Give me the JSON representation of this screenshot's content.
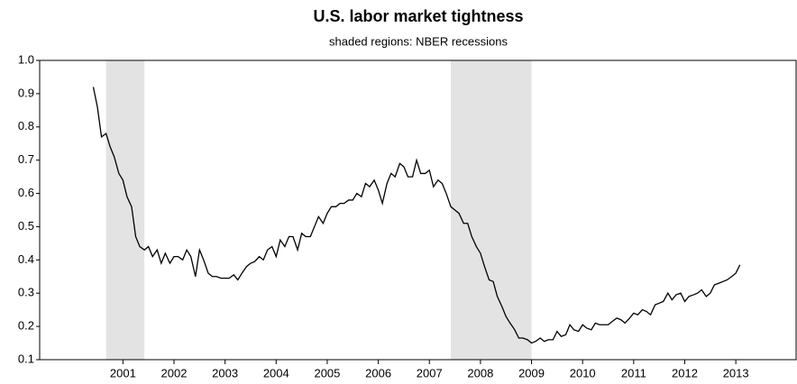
{
  "chart_data": {
    "type": "line",
    "title": "U.S. labor market tightness",
    "subtitle": "shaded regions: NBER recessions",
    "recessions": [
      [
        2001.17,
        2001.92
      ],
      [
        2007.92,
        2009.5
      ]
    ],
    "recession_color": "#e3e3e3",
    "xlim": [
      1999.87,
      2014.68
    ],
    "xticks": [
      {
        "value": 2001.5,
        "label": "2001"
      },
      {
        "value": 2002.5,
        "label": "2002"
      },
      {
        "value": 2003.5,
        "label": "2003"
      },
      {
        "value": 2004.5,
        "label": "2004"
      },
      {
        "value": 2005.5,
        "label": "2005"
      },
      {
        "value": 2006.5,
        "label": "2006"
      },
      {
        "value": 2007.5,
        "label": "2007"
      },
      {
        "value": 2008.5,
        "label": "2008"
      },
      {
        "value": 2009.5,
        "label": "2009"
      },
      {
        "value": 2010.5,
        "label": "2010"
      },
      {
        "value": 2011.5,
        "label": "2011"
      },
      {
        "value": 2012.5,
        "label": "2012"
      },
      {
        "value": 2013.5,
        "label": "2013"
      }
    ],
    "ylim": [
      0.1,
      1.0
    ],
    "yticks": [
      0.1,
      0.2,
      0.3,
      0.4,
      0.5,
      0.6,
      0.7,
      0.8,
      0.9,
      {
        "value": 1.0,
        "label": "1.0"
      }
    ],
    "grid": false,
    "x": [
      2000.92,
      2001.0,
      2001.08,
      2001.17,
      2001.25,
      2001.33,
      2001.42,
      2001.5,
      2001.58,
      2001.67,
      2001.75,
      2001.83,
      2001.92,
      2002.0,
      2002.08,
      2002.17,
      2002.25,
      2002.33,
      2002.42,
      2002.5,
      2002.58,
      2002.67,
      2002.75,
      2002.83,
      2002.92,
      2003.0,
      2003.08,
      2003.17,
      2003.25,
      2003.33,
      2003.42,
      2003.5,
      2003.58,
      2003.67,
      2003.75,
      2003.83,
      2003.92,
      2004.0,
      2004.08,
      2004.17,
      2004.25,
      2004.33,
      2004.42,
      2004.5,
      2004.58,
      2004.67,
      2004.75,
      2004.83,
      2004.92,
      2005.0,
      2005.08,
      2005.17,
      2005.25,
      2005.33,
      2005.42,
      2005.5,
      2005.58,
      2005.67,
      2005.75,
      2005.83,
      2005.92,
      2006.0,
      2006.08,
      2006.17,
      2006.25,
      2006.33,
      2006.42,
      2006.5,
      2006.58,
      2006.67,
      2006.75,
      2006.83,
      2006.92,
      2007.0,
      2007.08,
      2007.17,
      2007.25,
      2007.33,
      2007.42,
      2007.5,
      2007.58,
      2007.67,
      2007.75,
      2007.83,
      2007.92,
      2008.0,
      2008.08,
      2008.17,
      2008.25,
      2008.33,
      2008.42,
      2008.5,
      2008.58,
      2008.67,
      2008.75,
      2008.83,
      2008.92,
      2009.0,
      2009.08,
      2009.17,
      2009.25,
      2009.33,
      2009.42,
      2009.5,
      2009.58,
      2009.67,
      2009.75,
      2009.83,
      2009.92,
      2010.0,
      2010.08,
      2010.17,
      2010.25,
      2010.33,
      2010.42,
      2010.5,
      2010.58,
      2010.67,
      2010.75,
      2010.83,
      2010.92,
      2011.0,
      2011.08,
      2011.17,
      2011.25,
      2011.33,
      2011.42,
      2011.5,
      2011.58,
      2011.67,
      2011.75,
      2011.83,
      2011.92,
      2012.0,
      2012.08,
      2012.17,
      2012.25,
      2012.33,
      2012.42,
      2012.5,
      2012.58,
      2012.67,
      2012.75,
      2012.83,
      2012.92,
      2013.0,
      2013.08,
      2013.17,
      2013.25,
      2013.33,
      2013.42,
      2013.5,
      2013.58
    ],
    "series": [
      {
        "color": "#000000",
        "values": [
          0.92,
          0.86,
          0.77,
          0.78,
          0.74,
          0.71,
          0.66,
          0.64,
          0.59,
          0.56,
          0.47,
          0.44,
          0.43,
          0.44,
          0.41,
          0.43,
          0.39,
          0.42,
          0.39,
          0.41,
          0.41,
          0.4,
          0.43,
          0.41,
          0.35,
          0.43,
          0.4,
          0.36,
          0.35,
          0.35,
          0.345,
          0.345,
          0.345,
          0.355,
          0.34,
          0.36,
          0.38,
          0.39,
          0.395,
          0.41,
          0.4,
          0.43,
          0.44,
          0.41,
          0.46,
          0.44,
          0.47,
          0.47,
          0.43,
          0.48,
          0.47,
          0.47,
          0.5,
          0.53,
          0.51,
          0.54,
          0.56,
          0.56,
          0.57,
          0.57,
          0.58,
          0.58,
          0.6,
          0.59,
          0.63,
          0.62,
          0.64,
          0.61,
          0.57,
          0.63,
          0.66,
          0.65,
          0.69,
          0.68,
          0.65,
          0.65,
          0.7,
          0.66,
          0.66,
          0.67,
          0.62,
          0.64,
          0.63,
          0.6,
          0.56,
          0.55,
          0.54,
          0.51,
          0.51,
          0.47,
          0.44,
          0.42,
          0.38,
          0.34,
          0.335,
          0.29,
          0.26,
          0.23,
          0.21,
          0.19,
          0.165,
          0.165,
          0.16,
          0.15,
          0.155,
          0.165,
          0.155,
          0.16,
          0.16,
          0.185,
          0.17,
          0.175,
          0.205,
          0.19,
          0.185,
          0.205,
          0.195,
          0.19,
          0.21,
          0.205,
          0.205,
          0.205,
          0.215,
          0.225,
          0.22,
          0.21,
          0.225,
          0.24,
          0.235,
          0.25,
          0.245,
          0.235,
          0.265,
          0.27,
          0.275,
          0.3,
          0.28,
          0.295,
          0.3,
          0.275,
          0.29,
          0.295,
          0.3,
          0.31,
          0.29,
          0.3,
          0.325,
          0.33,
          0.335,
          0.34,
          0.35,
          0.36,
          0.385
        ]
      }
    ]
  }
}
